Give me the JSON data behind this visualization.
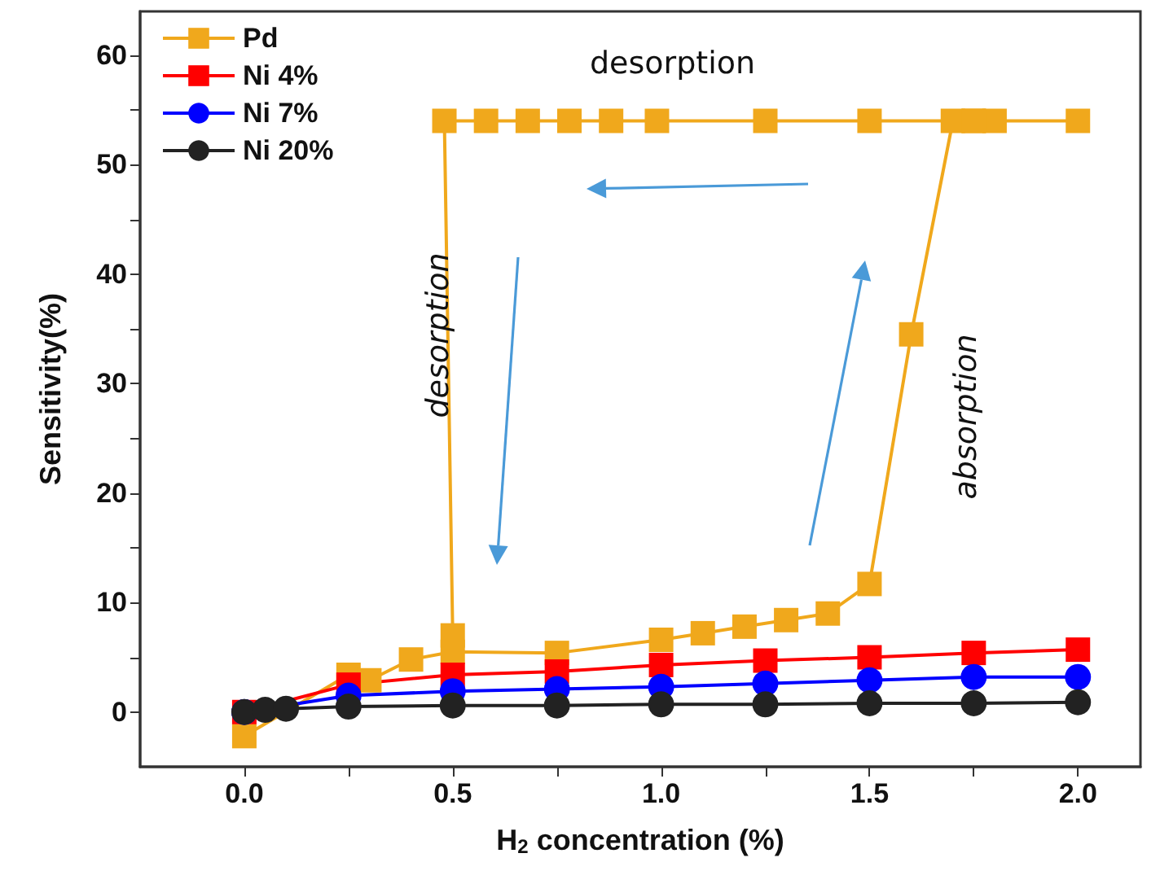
{
  "chart_data": {
    "type": "line",
    "xlabel": "H$_{2}$ concentration (%)",
    "ylabel": "Sensitivity(%)",
    "xlim": [
      -0.25,
      2.15
    ],
    "ylim": [
      -5,
      64
    ],
    "xticks": [
      {
        "value": 0,
        "label": "0.0"
      },
      {
        "value": 0.25,
        "label": null
      },
      {
        "value": 0.5,
        "label": "0.5"
      },
      {
        "value": 0.75,
        "label": null
      },
      {
        "value": 1,
        "label": "1.0"
      },
      {
        "value": 1.25,
        "label": null
      },
      {
        "value": 1.5,
        "label": "1.5"
      },
      {
        "value": 1.75,
        "label": null
      },
      {
        "value": 2,
        "label": "2.0"
      }
    ],
    "yticks": [
      0,
      {
        "value": 5,
        "label": null
      },
      10,
      {
        "value": 15,
        "label": null
      },
      20,
      {
        "value": 25,
        "label": null
      },
      30,
      {
        "value": 35,
        "label": null
      },
      40,
      {
        "value": 45,
        "label": null
      },
      50,
      {
        "value": 55,
        "label": null
      },
      60
    ],
    "grid": false,
    "legend": "top left",
    "line_style": "solid",
    "annotations": [
      "desorption",
      "desorption",
      "absorption"
    ],
    "series": [
      {
        "name": "Pd",
        "color": "#f0a81c",
        "marker": "square",
        "x": [
          0,
          0.25,
          0.3,
          0.4,
          0.5,
          0.75,
          1.0,
          1.1,
          1.2,
          1.3,
          1.4,
          1.5,
          1.6,
          1.7,
          1.75,
          1.8,
          2.0,
          1.75,
          1.5,
          1.25,
          0.99,
          0.88,
          0.78,
          0.68,
          0.58,
          0.48,
          0.5
        ],
        "values": [
          -2.2,
          3.4,
          2.9,
          4.8,
          5.5,
          5.4,
          6.6,
          7.2,
          7.8,
          8.4,
          9.0,
          11.7,
          34.5,
          54,
          54,
          54,
          54,
          54,
          54,
          54,
          54,
          54,
          54,
          54,
          54,
          54,
          7
        ]
      },
      {
        "name": "Ni 4%",
        "color": "#ff0000",
        "marker": "square",
        "x": [
          0,
          0.25,
          0.5,
          0.75,
          1.0,
          1.25,
          1.5,
          1.75,
          2.0
        ],
        "values": [
          0,
          2.5,
          3.4,
          3.7,
          4.3,
          4.7,
          5.0,
          5.4,
          5.7
        ]
      },
      {
        "name": "Ni 7%",
        "color": "#0000ff",
        "marker": "circle",
        "x": [
          0,
          0.25,
          0.5,
          0.75,
          1.0,
          1.25,
          1.5,
          1.75,
          2.0
        ],
        "values": [
          0,
          1.5,
          1.9,
          2.1,
          2.3,
          2.6,
          2.9,
          3.2,
          3.2
        ]
      },
      {
        "name": "Ni 20%",
        "color": "#222222",
        "marker": "circle",
        "x": [
          0,
          0.05,
          0.1,
          0.25,
          0.5,
          0.75,
          1.0,
          1.25,
          1.5,
          1.75,
          2.0
        ],
        "values": [
          0,
          0.2,
          0.3,
          0.5,
          0.6,
          0.6,
          0.7,
          0.7,
          0.8,
          0.8,
          0.9
        ]
      }
    ]
  }
}
